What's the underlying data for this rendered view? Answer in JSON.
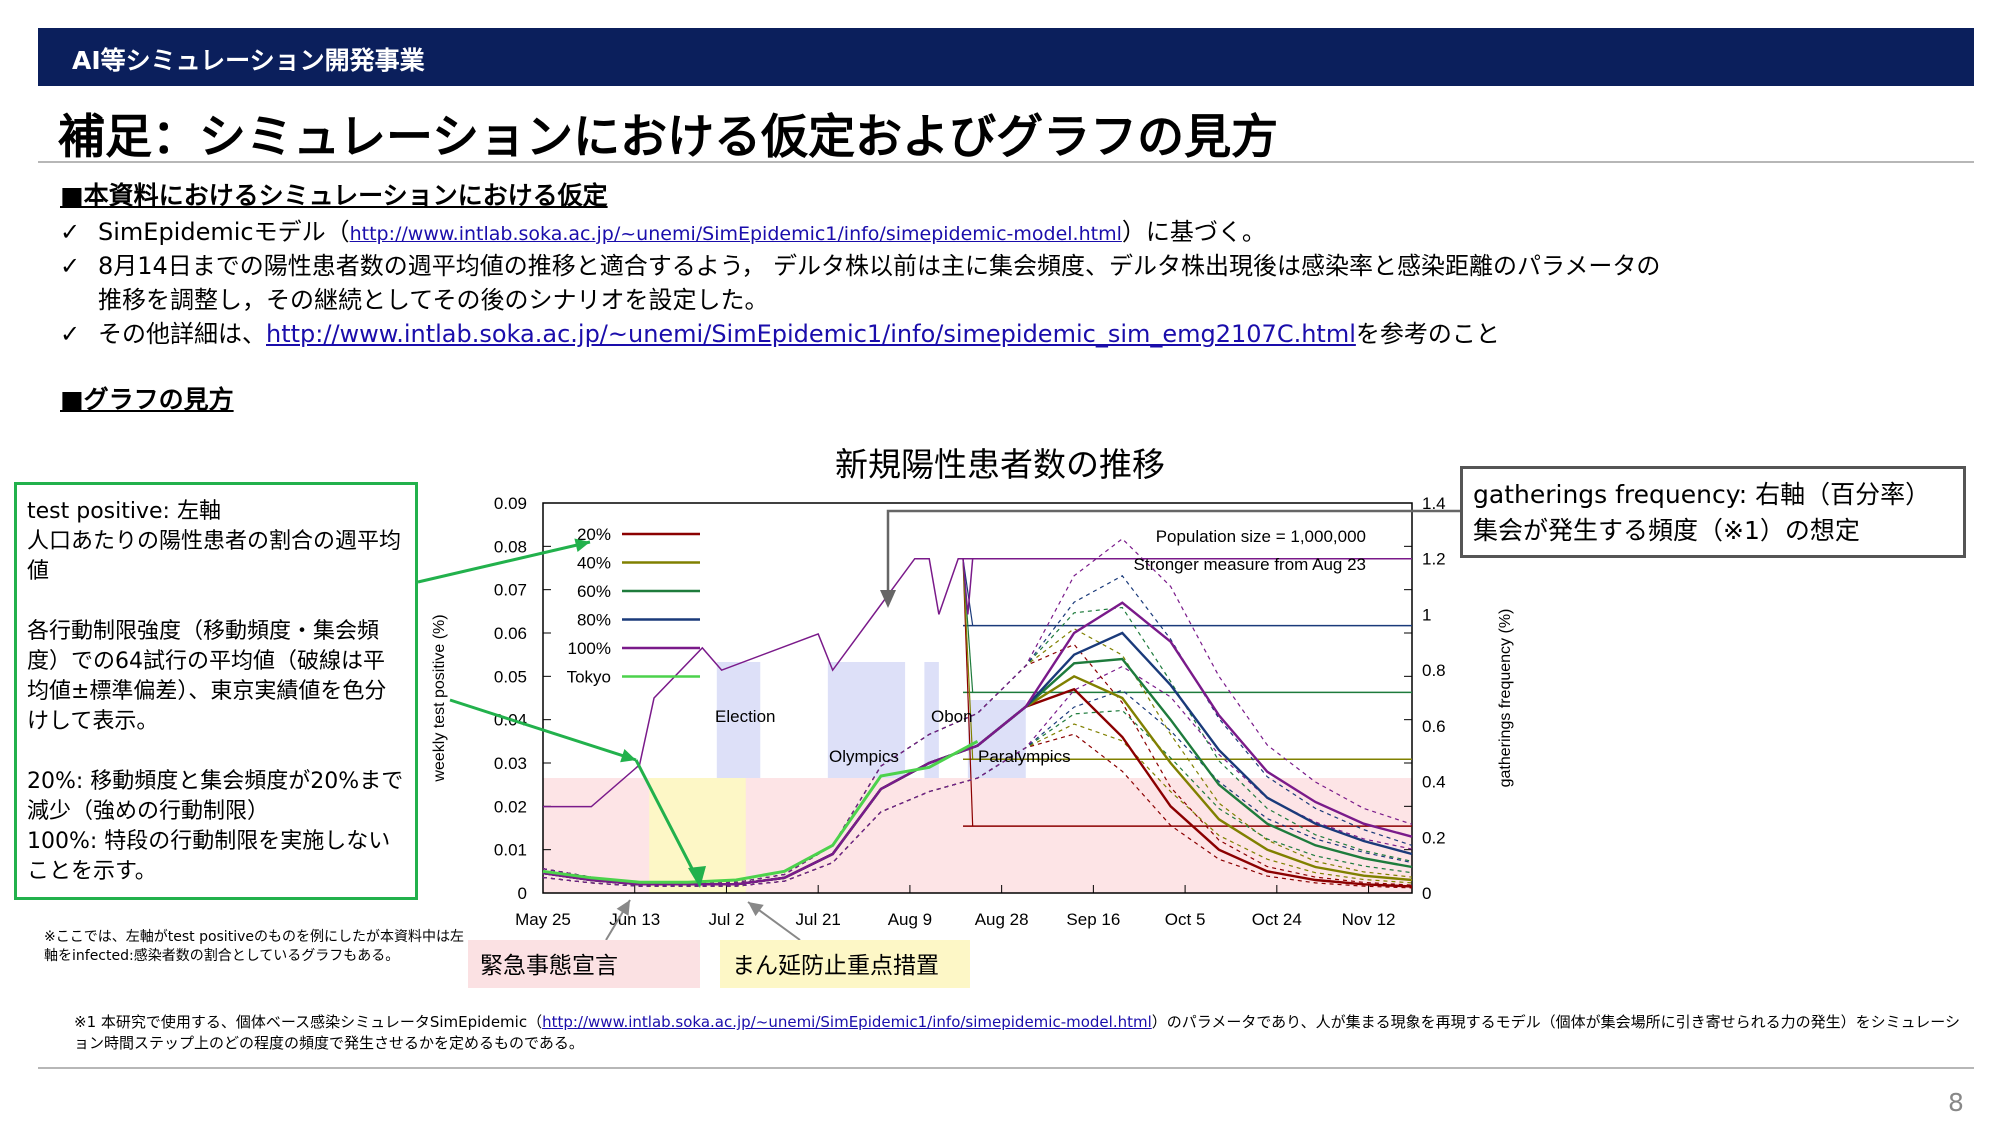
{
  "header": {
    "bar_label": "AI等シミュレーション開発事業",
    "title": "補足：シミュレーションにおける仮定およびグラフの見方"
  },
  "assumptions": {
    "heading": "■本資料におけるシミュレーションにおける仮定",
    "bullet1_prefix": "SimEpidemicモデル（",
    "bullet1_link": "http://www.intlab.soka.ac.jp/~unemi/SimEpidemic1/info/simepidemic-model.html",
    "bullet1_suffix": "）に基づく。",
    "bullet2_line1": "8月14日までの陽性患者数の週平均値の推移と適合するよう，  デルタ株以前は主に集会頻度、デルタ株出現後は感染率と感染距離のパラメータの",
    "bullet2_line2": "推移を調整し，その継続としてその後のシナリオを設定した。",
    "bullet3_prefix": "その他詳細は、",
    "bullet3_link": "http://www.intlab.soka.ac.jp/~unemi/SimEpidemic1/info/simepidemic_sim_emg2107C.html",
    "bullet3_suffix": "を参考のこと",
    "check_mark": "✓"
  },
  "graph_guide": {
    "heading": "■グラフの見方"
  },
  "green_box": {
    "p1": "test positive: 左軸\n人口あたりの陽性患者の割合の週平均値",
    "p2": "各行動制限強度（移動頻度・集会頻度）での64試行の平均値（破線は平均値±標準偏差）、東京実績値を色分けして表示。",
    "p3": "20%: 移動頻度と集会頻度が20%まで減少（強めの行動制限）\n100%: 特段の行動制限を実施しないことを示す。"
  },
  "note_left": "※ここでは、左軸がtest positiveのものを例にしたが本資料中は左軸をinfected:感染者数の割合としているグラフもある。",
  "gatherings_box": {
    "line1": "gatherings frequency: 右軸（百分率）",
    "line2": "集会が発生する頻度（※1）の想定"
  },
  "tags": {
    "emergency": "緊急事態宣言",
    "priority": "まん延防止重点措置"
  },
  "footnote": {
    "prefix": "※1 本研究で使用する、個体ベース感染シミュレータSimEpidemic（",
    "link": "http://www.intlab.soka.ac.jp/~unemi/SimEpidemic1/info/simepidemic-model.html",
    "suffix": "）のパラメータであり、人が集まる現象を再現するモデル（個体が集会場所に引き寄せられる力の発生）をシミュレーション時間ステップ上のどの程度の頻度で発生させるかを定めるものである。"
  },
  "page_number": "8",
  "chart_data": {
    "type": "line",
    "title": "新規陽性患者数の推移",
    "ylabel": "weekly test positive (%)",
    "y2label": "gatherings frequency (%)",
    "ylim": [
      0,
      0.09
    ],
    "y2lim": [
      0,
      1.4
    ],
    "yticks": [
      "0",
      "0.01",
      "0.02",
      "0.03",
      "0.04",
      "0.05",
      "0.06",
      "0.07",
      "0.08",
      "0.09"
    ],
    "y2ticks": [
      "0",
      "0.2",
      "0.4",
      "0.6",
      "0.8",
      "1",
      "1.2",
      "1.4"
    ],
    "xticks": [
      "May 25",
      "Jun 13",
      "Jul 2",
      "Jul 21",
      "Aug 9",
      "Aug 28",
      "Sep 16",
      "Oct 5",
      "Oct 24",
      "Nov 12"
    ],
    "grid": false,
    "legend": "top-left",
    "annotations": {
      "population": "Population size = 1,000,000",
      "stronger": "Stronger measure from Aug 23",
      "election": "Election",
      "olympics": "Olympics",
      "obon": "Obon",
      "paralympics": "Paralympics"
    },
    "x": [
      0,
      10,
      20,
      30,
      40,
      50,
      60,
      70,
      80,
      90,
      100,
      110,
      120,
      130,
      140,
      150,
      160,
      170,
      180
    ],
    "series": [
      {
        "name": "20%",
        "color": "#8b0000",
        "values": [
          0.0046,
          0.003,
          0.002,
          0.002,
          0.002,
          0.0035,
          0.009,
          0.024,
          0.03,
          0.034,
          0.043,
          0.047,
          0.036,
          0.02,
          0.01,
          0.005,
          0.003,
          0.002,
          0.0015
        ]
      },
      {
        "name": "40%",
        "color": "#808000",
        "values": [
          0.0046,
          0.003,
          0.002,
          0.002,
          0.002,
          0.0035,
          0.009,
          0.024,
          0.03,
          0.034,
          0.043,
          0.05,
          0.045,
          0.03,
          0.017,
          0.01,
          0.006,
          0.004,
          0.003
        ]
      },
      {
        "name": "60%",
        "color": "#1e7b3c",
        "values": [
          0.0046,
          0.003,
          0.002,
          0.002,
          0.002,
          0.0035,
          0.009,
          0.024,
          0.03,
          0.034,
          0.043,
          0.053,
          0.054,
          0.04,
          0.025,
          0.016,
          0.011,
          0.008,
          0.006
        ]
      },
      {
        "name": "80%",
        "color": "#1a3a7a",
        "values": [
          0.0046,
          0.003,
          0.002,
          0.002,
          0.002,
          0.0035,
          0.009,
          0.024,
          0.03,
          0.034,
          0.043,
          0.055,
          0.06,
          0.048,
          0.033,
          0.022,
          0.016,
          0.012,
          0.009
        ]
      },
      {
        "name": "100%",
        "color": "#7a1a8a",
        "values": [
          0.0046,
          0.003,
          0.002,
          0.002,
          0.002,
          0.0035,
          0.009,
          0.024,
          0.03,
          0.034,
          0.043,
          0.06,
          0.067,
          0.058,
          0.041,
          0.028,
          0.021,
          0.016,
          0.013
        ]
      },
      {
        "name": "Tokyo",
        "color": "#4cd24c",
        "values": [
          0.005,
          0.0035,
          0.0025,
          0.0025,
          0.003,
          0.005,
          0.011,
          0.027,
          0.029,
          0.035,
          null,
          null,
          null,
          null,
          null,
          null,
          null,
          null,
          null
        ]
      }
    ],
    "gatherings": {
      "color": "#7a1a8a",
      "x": [
        0,
        10,
        20,
        23,
        33,
        37,
        57,
        60,
        77,
        80,
        82,
        86,
        87,
        88,
        89,
        180
      ],
      "values": [
        0.31,
        0.31,
        0.46,
        0.7,
        0.88,
        0.8,
        0.93,
        0.8,
        1.2,
        1.2,
        1.0,
        1.2,
        1.2,
        1.0,
        1.2,
        1.2
      ]
    },
    "scenario_levels": [
      {
        "name": "20%",
        "color": "#8b0000",
        "value": 0.24
      },
      {
        "name": "40%",
        "color": "#808000",
        "value": 0.48
      },
      {
        "name": "60%",
        "color": "#1e7b3c",
        "value": 0.72
      },
      {
        "name": "80%",
        "color": "#1a3a7a",
        "value": 0.96
      },
      {
        "name": "100%",
        "color": "#7a1a8a",
        "value": 1.2
      }
    ]
  }
}
